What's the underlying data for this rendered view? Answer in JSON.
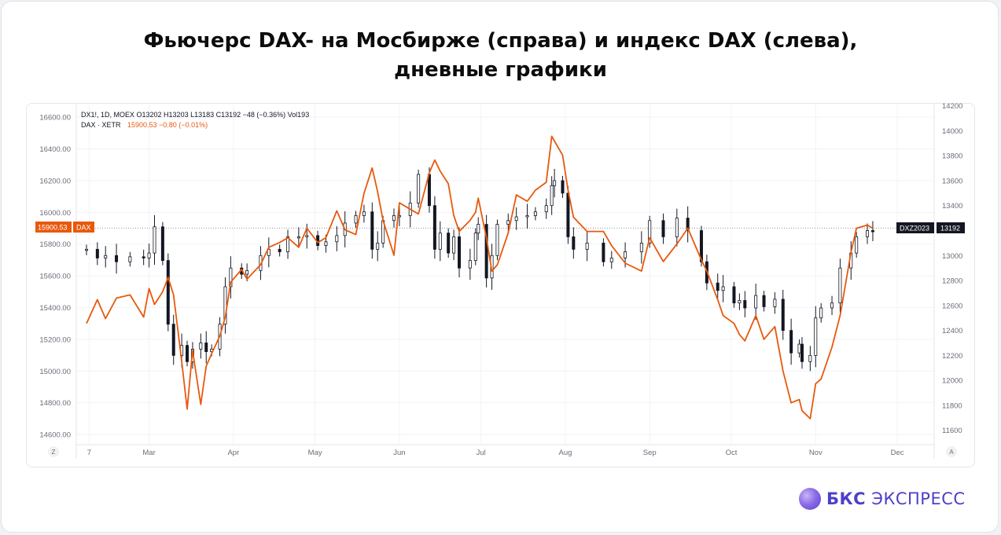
{
  "title_lines": [
    "Фьючерс DAX- на Мосбирже (справа) и индекс DAX (слева),",
    "дневные графики"
  ],
  "logo": {
    "brand": "БКС",
    "product": "ЭКСПРЕСС"
  },
  "chart_data": {
    "type": "line",
    "legend_lines": {
      "futures": "DX1!, 1D, MOEX  O13202  H13203  L13183  C13192  −48 (−0.36%)  Vol193",
      "index_prefix": "DAX · XETR",
      "index_values": "15900.53  −0.80 (−0.01%)"
    },
    "x_ticks": [
      "7",
      "Mar",
      "Apr",
      "May",
      "Jun",
      "Jul",
      "Aug",
      "Sep",
      "Oct",
      "Nov",
      "Dec"
    ],
    "y_left_ticks": [
      "16600.00",
      "16400.00",
      "16200.00",
      "16000.00",
      "15800.00",
      "15600.00",
      "15400.00",
      "15200.00",
      "15000.00",
      "14800.00",
      "14600.00"
    ],
    "y_right_ticks": [
      "14200",
      "14000",
      "13800",
      "13600",
      "13400",
      "13200",
      "13000",
      "12800",
      "12600",
      "12400",
      "12200",
      "12000",
      "11800",
      "11600"
    ],
    "ylim_left": [
      14536,
      16680
    ],
    "ylim_right": [
      11485,
      14210
    ],
    "corner_labels": {
      "bottom_left": "Z",
      "bottom_right": "A"
    },
    "price_tags": {
      "left_value": "15900.53",
      "left_name": "DAX",
      "right_name": "DXZ2023",
      "right_value": "13192"
    },
    "colors": {
      "dax_line": "#e8590c",
      "candle": "#131722",
      "grid": "#f0f3fa",
      "axis_text": "#6a6d78"
    },
    "series": [
      {
        "name": "DAX · XETR",
        "axis": "left",
        "x": [
          "2023-02-06",
          "2023-02-10",
          "2023-02-13",
          "2023-02-17",
          "2023-02-22",
          "2023-02-27",
          "2023-03-01",
          "2023-03-03",
          "2023-03-06",
          "2023-03-08",
          "2023-03-10",
          "2023-03-13",
          "2023-03-15",
          "2023-03-17",
          "2023-03-20",
          "2023-03-22",
          "2023-03-24",
          "2023-03-27",
          "2023-03-29",
          "2023-03-31",
          "2023-04-04",
          "2023-04-06",
          "2023-04-11",
          "2023-04-14",
          "2023-04-18",
          "2023-04-21",
          "2023-04-25",
          "2023-04-28",
          "2023-05-02",
          "2023-05-05",
          "2023-05-09",
          "2023-05-12",
          "2023-05-16",
          "2023-05-19",
          "2023-05-22",
          "2023-05-24",
          "2023-05-26",
          "2023-05-30",
          "2023-06-01",
          "2023-06-05",
          "2023-06-08",
          "2023-06-12",
          "2023-06-14",
          "2023-06-16",
          "2023-06-19",
          "2023-06-21",
          "2023-06-23",
          "2023-06-27",
          "2023-06-29",
          "2023-06-30",
          "2023-07-03",
          "2023-07-05",
          "2023-07-07",
          "2023-07-11",
          "2023-07-14",
          "2023-07-18",
          "2023-07-21",
          "2023-07-25",
          "2023-07-27",
          "2023-07-28",
          "2023-07-31",
          "2023-08-02",
          "2023-08-04",
          "2023-08-09",
          "2023-08-15",
          "2023-08-18",
          "2023-08-23",
          "2023-08-29",
          "2023-09-01",
          "2023-09-06",
          "2023-09-11",
          "2023-09-15",
          "2023-09-20",
          "2023-09-22",
          "2023-09-26",
          "2023-09-28",
          "2023-10-02",
          "2023-10-04",
          "2023-10-06",
          "2023-10-10",
          "2023-10-13",
          "2023-10-17",
          "2023-10-20",
          "2023-10-23",
          "2023-10-26",
          "2023-10-27",
          "2023-10-30",
          "2023-11-01",
          "2023-11-03",
          "2023-11-07",
          "2023-11-10",
          "2023-11-14",
          "2023-11-16",
          "2023-11-20",
          "2023-11-22"
        ],
        "values": [
          15300,
          15450,
          15330,
          15460,
          15480,
          15340,
          15520,
          15420,
          15500,
          15590,
          15480,
          15060,
          14760,
          15130,
          14790,
          15030,
          15110,
          15220,
          15340,
          15560,
          15640,
          15580,
          15670,
          15780,
          15810,
          15840,
          15780,
          15900,
          15810,
          15840,
          16010,
          15890,
          15860,
          16120,
          16280,
          16130,
          15950,
          15730,
          16060,
          16020,
          15990,
          16250,
          16330,
          16260,
          16180,
          15980,
          15880,
          15950,
          16000,
          16090,
          15840,
          15630,
          15670,
          15870,
          16110,
          16070,
          16140,
          16190,
          16480,
          16450,
          16360,
          16140,
          15970,
          15880,
          15880,
          15790,
          15680,
          15630,
          15840,
          15690,
          15800,
          15900,
          15700,
          15630,
          15450,
          15350,
          15300,
          15230,
          15190,
          15350,
          15200,
          15280,
          15000,
          14800,
          14820,
          14750,
          14700,
          14920,
          14950,
          15150,
          15350,
          15750,
          15900,
          15920,
          15900
        ]
      },
      {
        "name": "DX1!, 1D, MOEX",
        "axis": "right",
        "x": [
          "2023-02-06",
          "2023-02-10",
          "2023-02-13",
          "2023-02-17",
          "2023-02-22",
          "2023-02-27",
          "2023-03-01",
          "2023-03-03",
          "2023-03-06",
          "2023-03-08",
          "2023-03-10",
          "2023-03-13",
          "2023-03-15",
          "2023-03-17",
          "2023-03-20",
          "2023-03-22",
          "2023-03-24",
          "2023-03-27",
          "2023-03-29",
          "2023-03-31",
          "2023-04-04",
          "2023-04-06",
          "2023-04-11",
          "2023-04-14",
          "2023-04-18",
          "2023-04-21",
          "2023-04-25",
          "2023-04-28",
          "2023-05-02",
          "2023-05-05",
          "2023-05-09",
          "2023-05-12",
          "2023-05-16",
          "2023-05-19",
          "2023-05-22",
          "2023-05-24",
          "2023-05-26",
          "2023-05-30",
          "2023-06-01",
          "2023-06-05",
          "2023-06-08",
          "2023-06-12",
          "2023-06-14",
          "2023-06-16",
          "2023-06-19",
          "2023-06-21",
          "2023-06-23",
          "2023-06-27",
          "2023-06-29",
          "2023-06-30",
          "2023-07-03",
          "2023-07-05",
          "2023-07-07",
          "2023-07-11",
          "2023-07-14",
          "2023-07-18",
          "2023-07-21",
          "2023-07-25",
          "2023-07-27",
          "2023-07-28",
          "2023-07-31",
          "2023-08-02",
          "2023-08-04",
          "2023-08-09",
          "2023-08-15",
          "2023-08-18",
          "2023-08-23",
          "2023-08-29",
          "2023-09-01",
          "2023-09-06",
          "2023-09-11",
          "2023-09-15",
          "2023-09-20",
          "2023-09-22",
          "2023-09-26",
          "2023-09-28",
          "2023-10-02",
          "2023-10-04",
          "2023-10-06",
          "2023-10-10",
          "2023-10-13",
          "2023-10-17",
          "2023-10-20",
          "2023-10-23",
          "2023-10-26",
          "2023-10-27",
          "2023-10-30",
          "2023-11-01",
          "2023-11-03",
          "2023-11-07",
          "2023-11-10",
          "2023-11-14",
          "2023-11-16",
          "2023-11-20",
          "2023-11-22"
        ],
        "values": [
          13050,
          12980,
          13000,
          12950,
          12990,
          12980,
          13020,
          13230,
          12960,
          12450,
          12200,
          12280,
          12150,
          12250,
          12300,
          12230,
          12250,
          12450,
          12750,
          12900,
          12850,
          12880,
          13000,
          13050,
          13030,
          13150,
          13150,
          13160,
          13080,
          13110,
          13160,
          13260,
          13320,
          13350,
          13050,
          13100,
          13280,
          13320,
          13320,
          13420,
          13650,
          13400,
          13050,
          13180,
          13020,
          13150,
          12900,
          12960,
          13180,
          13250,
          12820,
          13000,
          13250,
          13280,
          13310,
          13320,
          13350,
          13400,
          13560,
          13600,
          13500,
          13150,
          13050,
          13100,
          12950,
          12980,
          13030,
          13100,
          13280,
          13150,
          13300,
          13200,
          12950,
          12780,
          12720,
          12750,
          12620,
          12640,
          12580,
          12680,
          12590,
          12650,
          12400,
          12220,
          12290,
          12150,
          12200,
          12500,
          12580,
          12620,
          12900,
          13020,
          13150,
          13200,
          13192
        ]
      }
    ]
  }
}
